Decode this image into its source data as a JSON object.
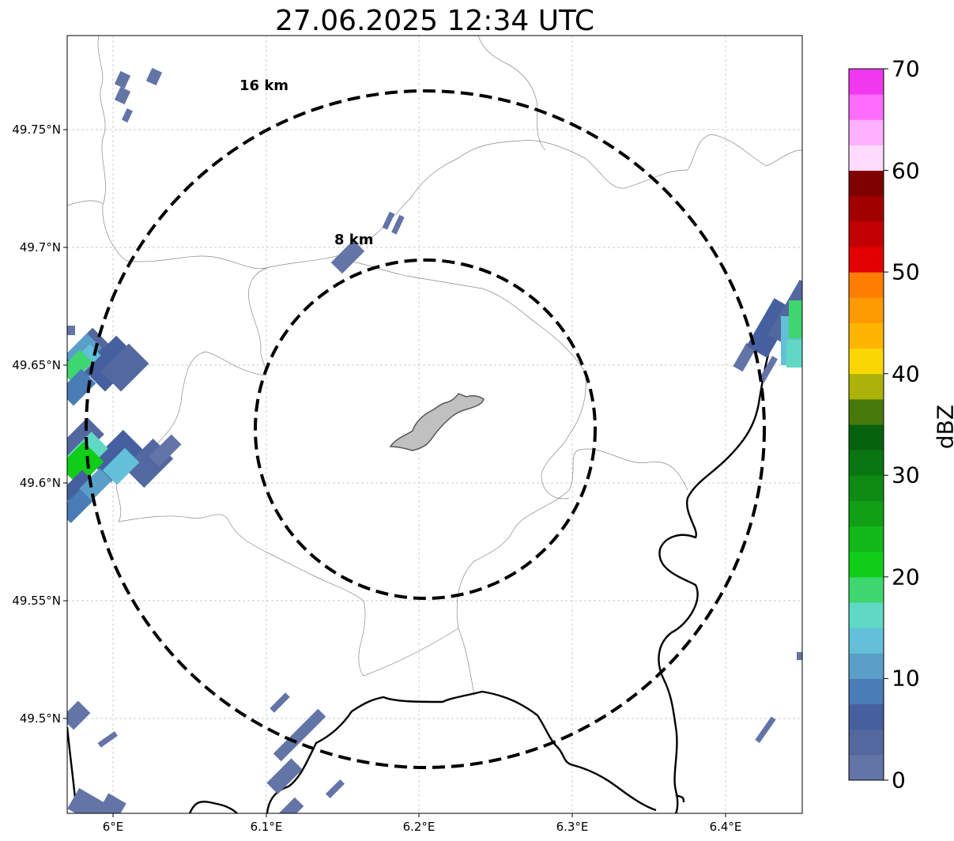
{
  "title": "27.06.2025 12:34 UTC",
  "ring_labels": [
    "16 km",
    "8 km"
  ],
  "lat_labels": [
    "49.75°N",
    "49.7°N",
    "49.65°N",
    "49.6°N",
    "49.55°N",
    "49.5°N"
  ],
  "lon_labels": [
    "6°E",
    "6.1°E",
    "6.2°E",
    "6.3°E",
    "6.4°E"
  ],
  "colorbar": {
    "label": "dBZ",
    "ticks": [
      "0",
      "10",
      "20",
      "30",
      "40",
      "50",
      "60",
      "70"
    ],
    "colors": [
      "#6374a6",
      "#5468a0",
      "#46609f",
      "#4a7db5",
      "#599fc8",
      "#63c0d8",
      "#60d8c4",
      "#3ed66e",
      "#10cd18",
      "#12b81a",
      "#119f16",
      "#0e8b12",
      "#097611",
      "#07620d",
      "#477a0a",
      "#acb209",
      "#fad704",
      "#ffb502",
      "#ff9b02",
      "#ff7d00",
      "#e20001",
      "#c20002",
      "#a10001",
      "#7f0000",
      "#ffdcff",
      "#ffb0ff",
      "#ff6dff",
      "#f038ef"
    ]
  }
}
